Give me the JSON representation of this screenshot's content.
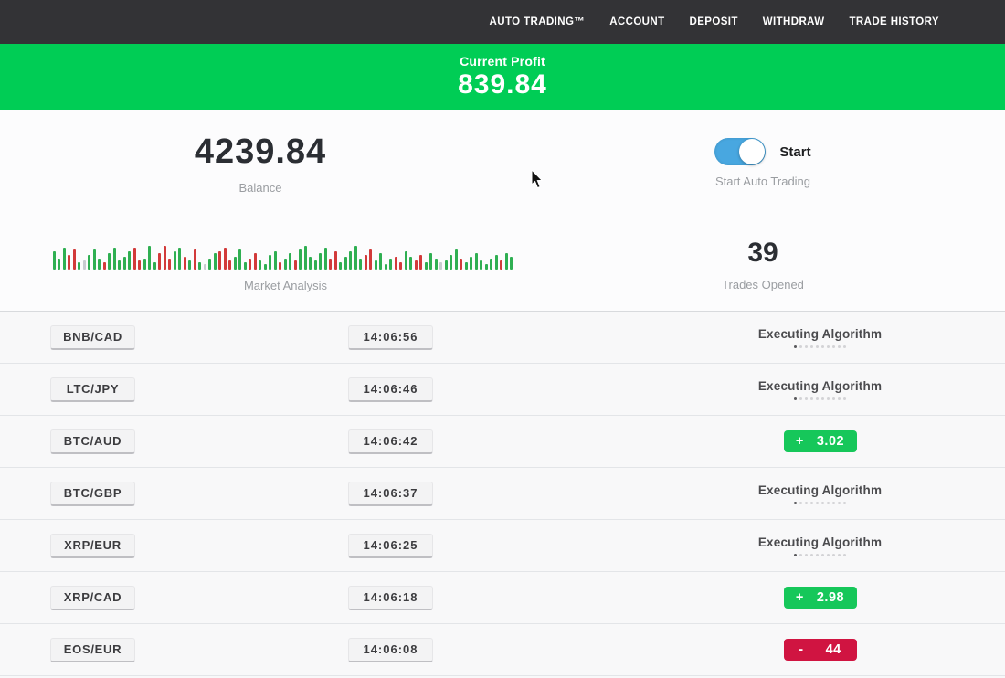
{
  "nav": {
    "items": [
      "AUTO TRADING™",
      "ACCOUNT",
      "DEPOSIT",
      "WITHDRAW",
      "TRADE HISTORY"
    ]
  },
  "profit_banner": {
    "label": "Current Profit",
    "value": "839.84",
    "bg_color": "#00cd55"
  },
  "stats": {
    "balance": {
      "value": "4239.84",
      "label": "Balance"
    },
    "auto_trading": {
      "toggle_label": "Start",
      "caption": "Start Auto Trading",
      "toggle_on": true,
      "toggle_color": "#48a7e0"
    },
    "market_analysis": {
      "label": "Market Analysis",
      "bar_colors": {
        "g": "#2faf52",
        "r": "#d23a3a",
        "l": "#c8ccd0"
      },
      "bars": "g20,g12,g24,r16,r22,g8,l10,g16,g22,g12,r8,g18,g24,g10,g14,g20,r24,r10,g12,g26,g8,r18,r26,r12,g20,g24,r14,g10,r22,g8,l6,g12,g18,r20,r24,r10,g14,g22,g8,r12,r18,g10,g6,g16,g20,r8,g12,g18,r10,g22,g26,g14,g10,g18,g24,r12,r20,g8,g14,g20,g26,g12,r16,r22,g10,g18,g6,g12,r14,r8,g20,g14,r10,r16,g8,g18,g12,l8,g10,g16,g22,r12,g8,g14,g18,g10,g6,g12,g16,r10,g18,g14"
    },
    "trades_opened": {
      "value": "39",
      "label": "Trades Opened"
    }
  },
  "trades": [
    {
      "pair": "BNB/CAD",
      "time": "14:06:56",
      "status": "executing",
      "status_text": "Executing Algorithm"
    },
    {
      "pair": "LTC/JPY",
      "time": "14:06:46",
      "status": "executing",
      "status_text": "Executing Algorithm"
    },
    {
      "pair": "BTC/AUD",
      "time": "14:06:42",
      "status": "profit",
      "sign": "+",
      "amount": "3.02"
    },
    {
      "pair": "BTC/GBP",
      "time": "14:06:37",
      "status": "executing",
      "status_text": "Executing Algorithm"
    },
    {
      "pair": "XRP/EUR",
      "time": "14:06:25",
      "status": "executing",
      "status_text": "Executing Algorithm"
    },
    {
      "pair": "XRP/CAD",
      "time": "14:06:18",
      "status": "profit",
      "sign": "+",
      "amount": "2.98"
    },
    {
      "pair": "EOS/EUR",
      "time": "14:06:08",
      "status": "loss",
      "sign": "-",
      "amount": "44"
    }
  ],
  "colors": {
    "nav_bg": "#333336",
    "profit_green": "#00cd55",
    "badge_green": "#16c75a",
    "badge_red": "#d01441",
    "toggle_blue": "#48a7e0"
  }
}
